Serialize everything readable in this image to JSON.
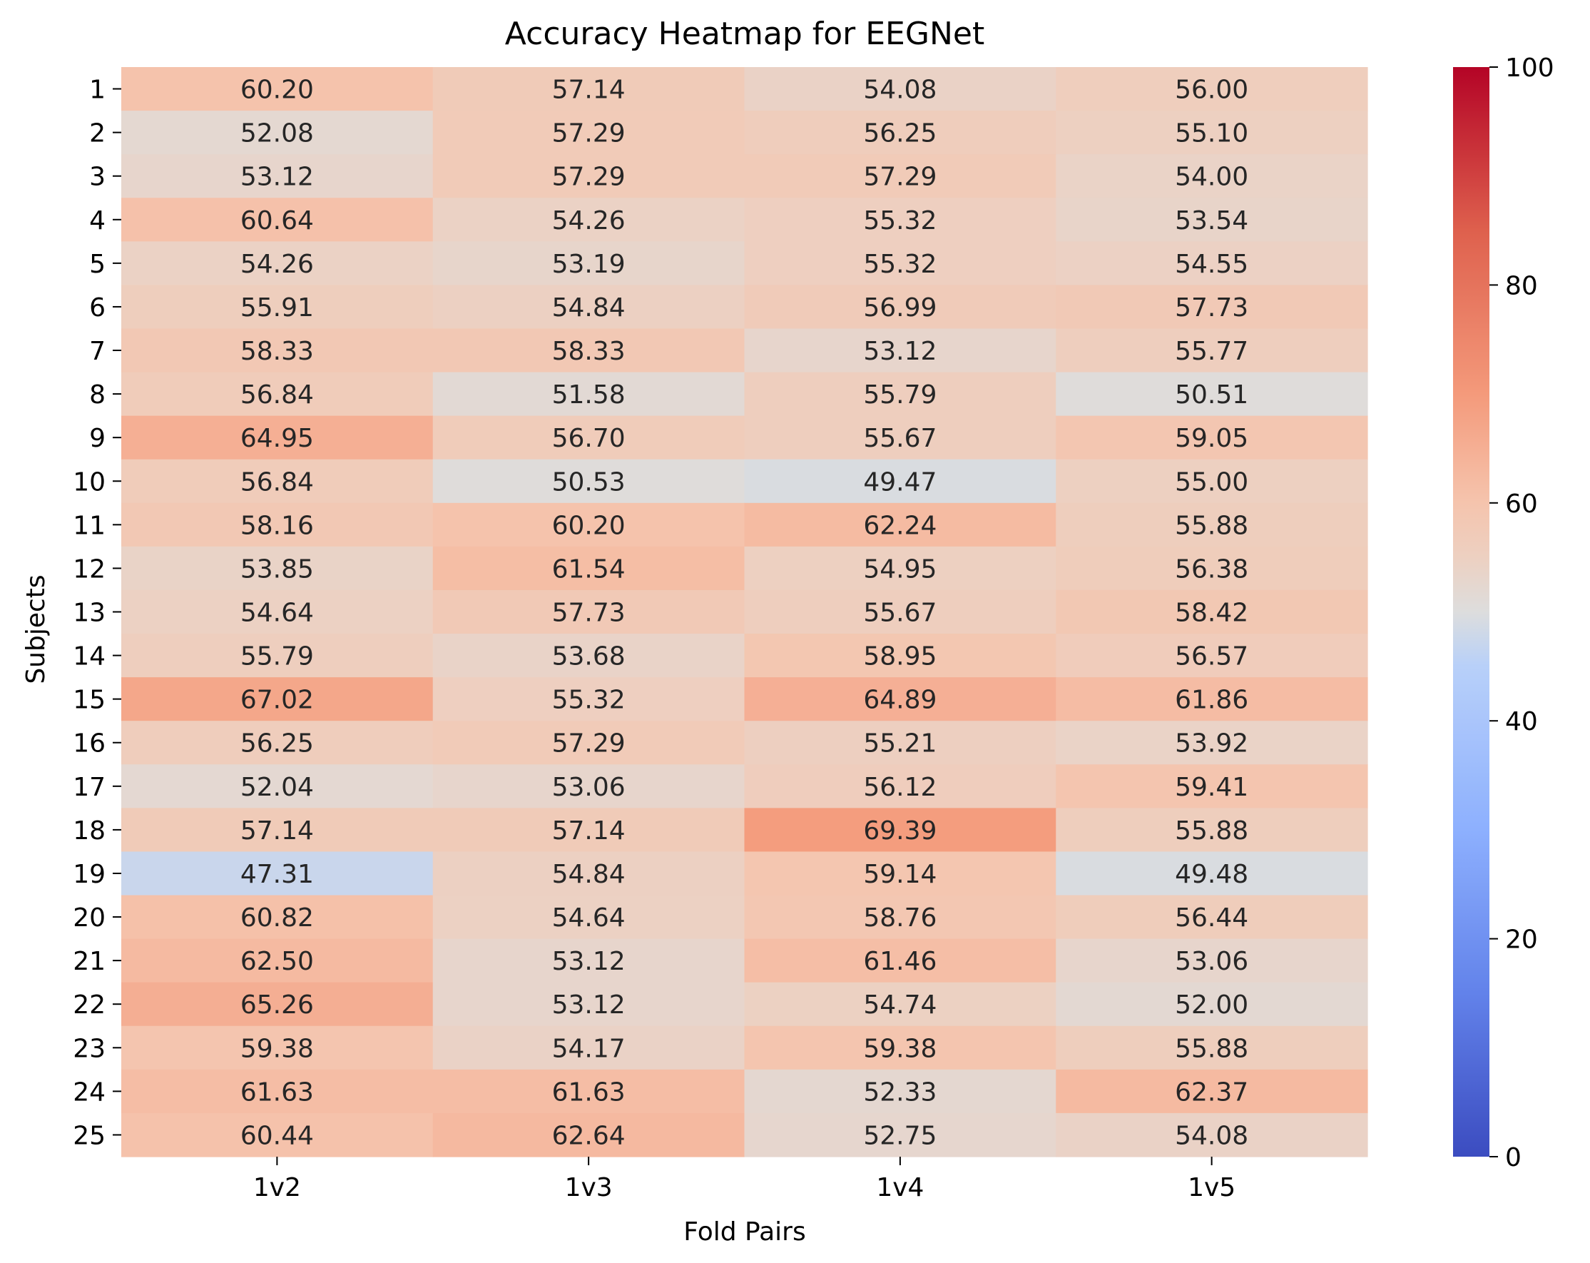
{
  "chart_data": {
    "type": "heatmap",
    "title": "Accuracy Heatmap for EEGNet",
    "xlabel": "Fold Pairs",
    "ylabel": "Subjects",
    "x_categories": [
      "1v2",
      "1v3",
      "1v4",
      "1v5"
    ],
    "y_categories": [
      "1",
      "2",
      "3",
      "4",
      "5",
      "6",
      "7",
      "8",
      "9",
      "10",
      "11",
      "12",
      "13",
      "14",
      "15",
      "16",
      "17",
      "18",
      "19",
      "20",
      "21",
      "22",
      "23",
      "24",
      "25"
    ],
    "values": [
      [
        60.2,
        57.14,
        54.08,
        56.0
      ],
      [
        52.08,
        57.29,
        56.25,
        55.1
      ],
      [
        53.12,
        57.29,
        57.29,
        54.0
      ],
      [
        60.64,
        54.26,
        55.32,
        53.54
      ],
      [
        54.26,
        53.19,
        55.32,
        54.55
      ],
      [
        55.91,
        54.84,
        56.99,
        57.73
      ],
      [
        58.33,
        58.33,
        53.12,
        55.77
      ],
      [
        56.84,
        51.58,
        55.79,
        50.51
      ],
      [
        64.95,
        56.7,
        55.67,
        59.05
      ],
      [
        56.84,
        50.53,
        49.47,
        55.0
      ],
      [
        58.16,
        60.2,
        62.24,
        55.88
      ],
      [
        53.85,
        61.54,
        54.95,
        56.38
      ],
      [
        54.64,
        57.73,
        55.67,
        58.42
      ],
      [
        55.79,
        53.68,
        58.95,
        56.57
      ],
      [
        67.02,
        55.32,
        64.89,
        61.86
      ],
      [
        56.25,
        57.29,
        55.21,
        53.92
      ],
      [
        52.04,
        53.06,
        56.12,
        59.41
      ],
      [
        57.14,
        57.14,
        69.39,
        55.88
      ],
      [
        47.31,
        54.84,
        59.14,
        49.48
      ],
      [
        60.82,
        54.64,
        58.76,
        56.44
      ],
      [
        62.5,
        53.12,
        61.46,
        53.06
      ],
      [
        65.26,
        53.12,
        54.74,
        52.0
      ],
      [
        59.38,
        54.17,
        59.38,
        55.88
      ],
      [
        61.63,
        61.63,
        52.33,
        62.37
      ],
      [
        60.44,
        62.64,
        52.75,
        54.08
      ]
    ],
    "value_format": "2 decimals",
    "colormap": "coolwarm",
    "vmin": 0,
    "vmax": 100,
    "colorbar_ticks": [
      0,
      20,
      40,
      60,
      80,
      100
    ],
    "grid": false
  }
}
